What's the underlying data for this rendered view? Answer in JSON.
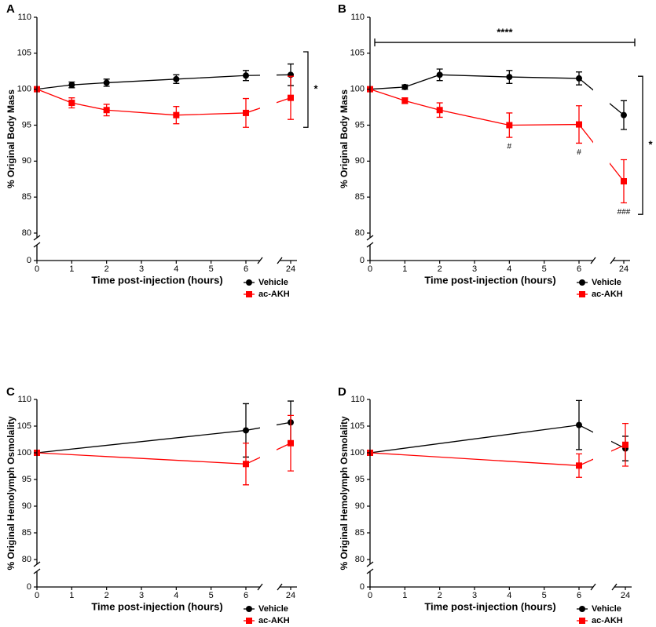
{
  "chart_data": [
    {
      "type": "line",
      "panel_label": "A",
      "ylabel": "% Original Body Mass",
      "xlabel": "Time post-injection (hours)",
      "x": [
        0,
        1,
        2,
        4,
        6,
        24
      ],
      "xlim": [
        0,
        24
      ],
      "xticks": [
        0,
        1,
        2,
        3,
        4,
        5,
        6,
        24
      ],
      "xbreak": [
        6,
        24
      ],
      "ylim": [
        0,
        110
      ],
      "yticks": [
        0,
        80,
        85,
        90,
        95,
        100,
        105,
        110
      ],
      "ybreak": [
        0,
        80
      ],
      "legend": "lower right",
      "series": [
        {
          "name": "Vehicle",
          "color": "#000000",
          "marker": "circle",
          "values": [
            100,
            100.6,
            100.9,
            101.4,
            101.9,
            102.0
          ],
          "errors": [
            0,
            0.4,
            0.5,
            0.6,
            0.7,
            1.5
          ]
        },
        {
          "name": "ac-AKH",
          "color": "#ff0000",
          "marker": "square",
          "values": [
            100,
            98.1,
            97.1,
            96.4,
            96.7,
            98.8
          ],
          "errors": [
            0,
            0.7,
            0.8,
            1.2,
            2.0,
            3.0
          ]
        }
      ],
      "annotations": [
        {
          "text": "*",
          "ybracket": [
            94.7,
            105.2
          ]
        }
      ]
    },
    {
      "type": "line",
      "panel_label": "B",
      "ylabel": "% Original Body Mass",
      "xlabel": "Time post-injection (hours)",
      "x": [
        0,
        1,
        2,
        4,
        6,
        24
      ],
      "xlim": [
        0,
        24
      ],
      "xticks": [
        0,
        1,
        2,
        3,
        4,
        5,
        6,
        24
      ],
      "xbreak": [
        6,
        24
      ],
      "ylim": [
        0,
        110
      ],
      "yticks": [
        0,
        80,
        85,
        90,
        95,
        100,
        105,
        110
      ],
      "ybreak": [
        0,
        80
      ],
      "legend": "lower right",
      "series": [
        {
          "name": "Vehicle",
          "color": "#000000",
          "marker": "circle",
          "values": [
            100,
            100.3,
            102.0,
            101.7,
            101.5,
            96.4
          ],
          "errors": [
            0,
            0.3,
            0.8,
            0.9,
            0.9,
            2.0
          ]
        },
        {
          "name": "ac-AKH",
          "color": "#ff0000",
          "marker": "square",
          "values": [
            100,
            98.4,
            97.1,
            95.0,
            95.1,
            87.2
          ],
          "errors": [
            0,
            0.4,
            1.0,
            1.7,
            2.6,
            3.0
          ]
        }
      ],
      "annotations": [
        {
          "text": "****",
          "xbracket": [
            0,
            24
          ],
          "y": 106.5
        },
        {
          "text": "*",
          "ybracket": [
            82.6,
            101.8
          ]
        },
        {
          "text": "#",
          "x": 4
        },
        {
          "text": "#",
          "x": 6
        },
        {
          "text": "###",
          "x": 24
        }
      ]
    },
    {
      "type": "line",
      "panel_label": "C",
      "ylabel": "% Original Hemolymph Osmolality",
      "xlabel": "Time post-injection (hours)",
      "x": [
        0,
        6,
        24
      ],
      "xlim": [
        0,
        24
      ],
      "xticks": [
        0,
        1,
        2,
        3,
        4,
        5,
        6,
        24
      ],
      "xbreak": [
        6,
        24
      ],
      "ylim": [
        0,
        110
      ],
      "yticks": [
        0,
        80,
        85,
        90,
        95,
        100,
        105,
        110
      ],
      "ybreak": [
        0,
        80
      ],
      "legend": "lower right",
      "series": [
        {
          "name": "Vehicle",
          "color": "#000000",
          "marker": "circle",
          "values": [
            100,
            104.2,
            105.7
          ],
          "errors": [
            0,
            5.0,
            4.0
          ]
        },
        {
          "name": "ac-AKH",
          "color": "#ff0000",
          "marker": "square",
          "values": [
            100,
            97.9,
            101.8
          ],
          "errors": [
            0,
            3.9,
            5.2
          ]
        }
      ],
      "annotations": []
    },
    {
      "type": "line",
      "panel_label": "D",
      "ylabel": "% Original Hemolymph Osmolality",
      "xlabel": "Time post-injection (hours)",
      "x": [
        0,
        6,
        24
      ],
      "xlim": [
        0,
        24
      ],
      "xticks": [
        0,
        1,
        2,
        3,
        4,
        5,
        6,
        24
      ],
      "xbreak": [
        6,
        24
      ],
      "ylim": [
        0,
        110
      ],
      "yticks": [
        0,
        80,
        85,
        90,
        95,
        100,
        105,
        110
      ],
      "ybreak": [
        0,
        80
      ],
      "legend": "lower right",
      "series": [
        {
          "name": "Vehicle",
          "color": "#000000",
          "marker": "circle",
          "values": [
            100,
            105.2,
            100.8
          ],
          "errors": [
            0,
            4.6,
            2.3
          ]
        },
        {
          "name": "ac-AKH",
          "color": "#ff0000",
          "marker": "square",
          "values": [
            100,
            97.6,
            101.5
          ],
          "errors": [
            0,
            2.2,
            4.0
          ]
        }
      ],
      "annotations": []
    }
  ]
}
